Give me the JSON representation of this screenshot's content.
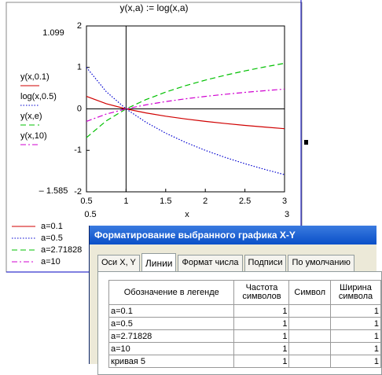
{
  "chart_data": {
    "type": "line",
    "title": "y(x,a) := log(x,a)",
    "xlabel": "x",
    "x": [
      0.5,
      0.75,
      1,
      1.25,
      1.5,
      1.75,
      2,
      2.25,
      2.5,
      2.75,
      3
    ],
    "xlim": [
      0.5,
      3
    ],
    "xticks": [
      0.5,
      1,
      1.5,
      2,
      2.5,
      3
    ],
    "ylim": [
      -2,
      2
    ],
    "yticks": [
      -2,
      -1,
      0,
      1,
      2
    ],
    "grid": false,
    "range_labels": {
      "ymax": "1.099",
      "ymin": "– 1.585",
      "xmin": "0.5",
      "xmax": "3"
    },
    "series": [
      {
        "name": "a=0.1",
        "trace_label": "y(x,0.1)",
        "color": "#d00000",
        "dash": "solid",
        "values": [
          0.301,
          0.125,
          0,
          -0.097,
          -0.176,
          -0.243,
          -0.301,
          -0.352,
          -0.398,
          -0.439,
          -0.477
        ]
      },
      {
        "name": "a=0.5",
        "trace_label": "log(x,0.5)",
        "color": "#0000d0",
        "dash": "dotted",
        "values": [
          1,
          0.415,
          0,
          -0.322,
          -0.585,
          -0.807,
          -1,
          -1.17,
          -1.322,
          -1.459,
          -1.585
        ]
      },
      {
        "name": "a=2.71828",
        "trace_label": "y(x,e)",
        "color": "#00c000",
        "dash": "dashed",
        "values": [
          -0.693,
          -0.288,
          0,
          0.223,
          0.405,
          0.56,
          0.693,
          0.811,
          0.916,
          1.012,
          1.099
        ]
      },
      {
        "name": "a=10",
        "trace_label": "y(x,10)",
        "color": "#d000d0",
        "dash": "dashdot",
        "values": [
          -0.301,
          -0.125,
          0,
          0.097,
          0.176,
          0.243,
          0.301,
          0.352,
          0.398,
          0.439,
          0.477
        ]
      }
    ]
  },
  "dialog": {
    "title": "Форматирование выбранного графика X-Y",
    "tabs": [
      "Оси X, Y",
      "Линии",
      "Формат числа",
      "Подписи",
      "По умолчанию"
    ],
    "table": {
      "headers": [
        "Обозначение в легенде",
        "Частота символов",
        "Символ",
        "Ширина символа"
      ],
      "rows": [
        {
          "legend": "a=0.1",
          "frequency": "1",
          "width": "1"
        },
        {
          "legend": "a=0.5",
          "frequency": "1",
          "width": "1"
        },
        {
          "legend": "a=2.71828",
          "frequency": "1",
          "width": "1"
        },
        {
          "legend": "a=10",
          "frequency": "1",
          "width": "1"
        },
        {
          "legend": "кривая 5",
          "frequency": "1",
          "width": "1"
        }
      ]
    }
  }
}
